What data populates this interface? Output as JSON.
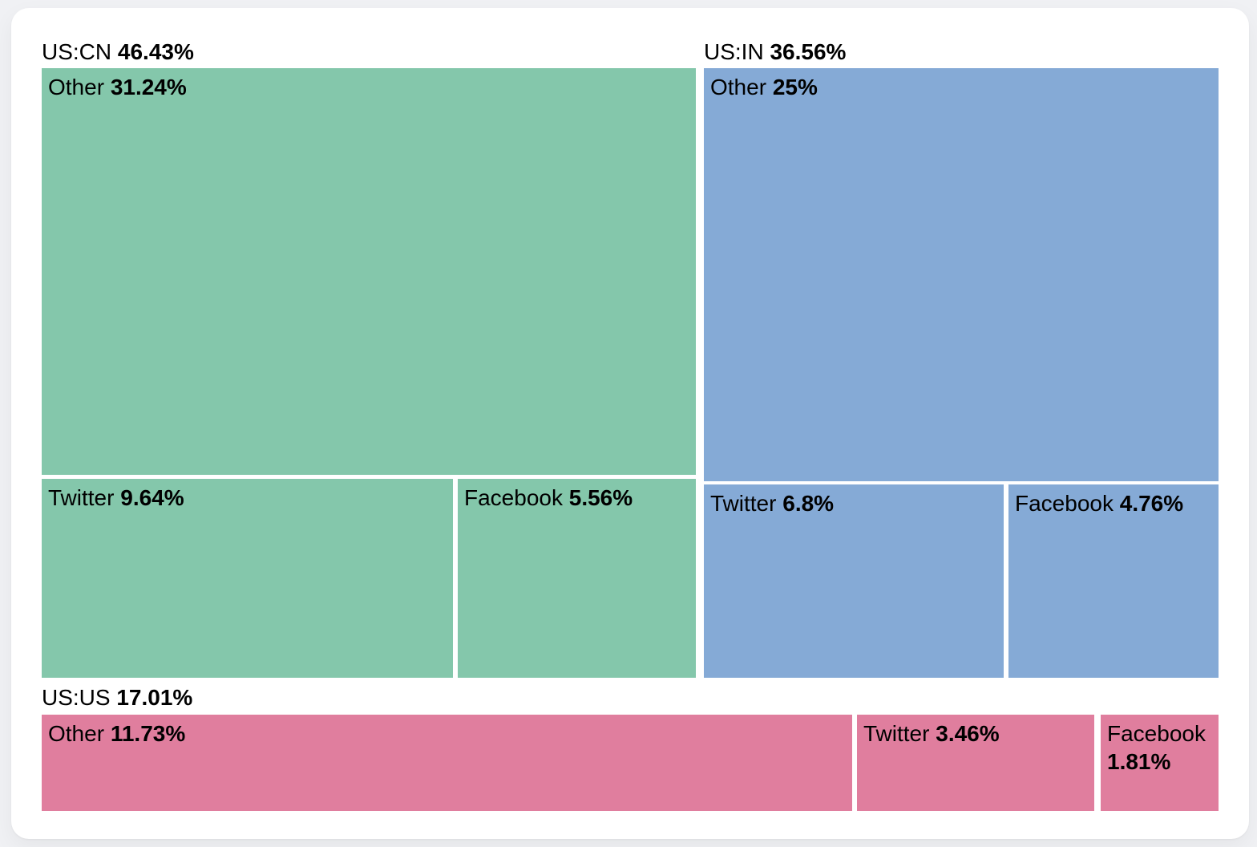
{
  "chart_data": {
    "type": "treemap",
    "unit": "%",
    "legend_position": "none",
    "groups": [
      {
        "name": "US:CN",
        "value": 46.43,
        "value_label": "46.43%",
        "color": "#84c7ab",
        "children": [
          {
            "label": "Other",
            "value": 31.24,
            "value_label": "31.24%"
          },
          {
            "label": "Twitter",
            "value": 9.64,
            "value_label": "9.64%"
          },
          {
            "label": "Facebook",
            "value": 5.56,
            "value_label": "5.56%"
          }
        ]
      },
      {
        "name": "US:IN",
        "value": 36.56,
        "value_label": "36.56%",
        "color": "#85aad6",
        "children": [
          {
            "label": "Other",
            "value": 25,
            "value_label": "25%"
          },
          {
            "label": "Twitter",
            "value": 6.8,
            "value_label": "6.8%"
          },
          {
            "label": "Facebook",
            "value": 4.76,
            "value_label": "4.76%"
          }
        ]
      },
      {
        "name": "US:US",
        "value": 17.01,
        "value_label": "17.01%",
        "color": "#e07e9e",
        "children": [
          {
            "label": "Other",
            "value": 11.73,
            "value_label": "11.73%"
          },
          {
            "label": "Twitter",
            "value": 3.46,
            "value_label": "3.46%"
          },
          {
            "label": "Facebook",
            "value": 1.81,
            "value_label": "1.81%"
          }
        ]
      }
    ],
    "text_color": "#000000",
    "background_color": "#ffffff"
  }
}
